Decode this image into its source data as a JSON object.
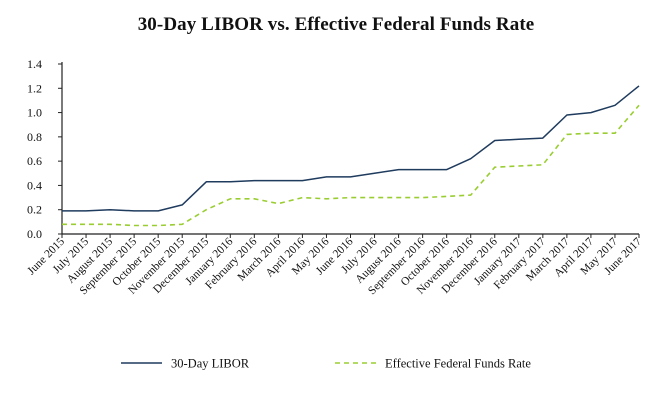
{
  "chart_data": {
    "type": "line",
    "title": "30-Day LIBOR vs. Effective Federal Funds Rate",
    "xlabel": "",
    "ylabel": "",
    "ylim": [
      0,
      1.4
    ],
    "yticks": [
      "0.0",
      "0.2",
      "0.4",
      "0.6",
      "0.8",
      "1.0",
      "1.2",
      "1.4"
    ],
    "legend_position": "bottom",
    "categories": [
      "June 2015",
      "July 2015",
      "August 2015",
      "September 2015",
      "October 2015",
      "November 2015",
      "December 2015",
      "January 2016",
      "February 2016",
      "March 2016",
      "April 2016",
      "May 2016",
      "June 2016",
      "July 2016",
      "August 2016",
      "September 2016",
      "October 2016",
      "November 2016",
      "December 2016",
      "January 2017",
      "February 2017",
      "March 2017",
      "April 2017",
      "May 2017",
      "June 2017"
    ],
    "series": [
      {
        "name": "30-Day LIBOR",
        "color": "#1f3b5e",
        "dash": "solid",
        "values": [
          0.19,
          0.19,
          0.2,
          0.19,
          0.19,
          0.24,
          0.43,
          0.43,
          0.44,
          0.44,
          0.44,
          0.47,
          0.47,
          0.5,
          0.53,
          0.53,
          0.53,
          0.62,
          0.77,
          0.78,
          0.79,
          0.98,
          1.0,
          1.06,
          1.22
        ]
      },
      {
        "name": "Effective Federal Funds Rate",
        "color": "#9acd32",
        "dash": "dashed",
        "values": [
          0.08,
          0.08,
          0.08,
          0.07,
          0.07,
          0.08,
          0.2,
          0.29,
          0.29,
          0.25,
          0.3,
          0.29,
          0.3,
          0.3,
          0.3,
          0.3,
          0.31,
          0.32,
          0.55,
          0.56,
          0.57,
          0.82,
          0.83,
          0.83,
          1.06
        ]
      }
    ]
  }
}
